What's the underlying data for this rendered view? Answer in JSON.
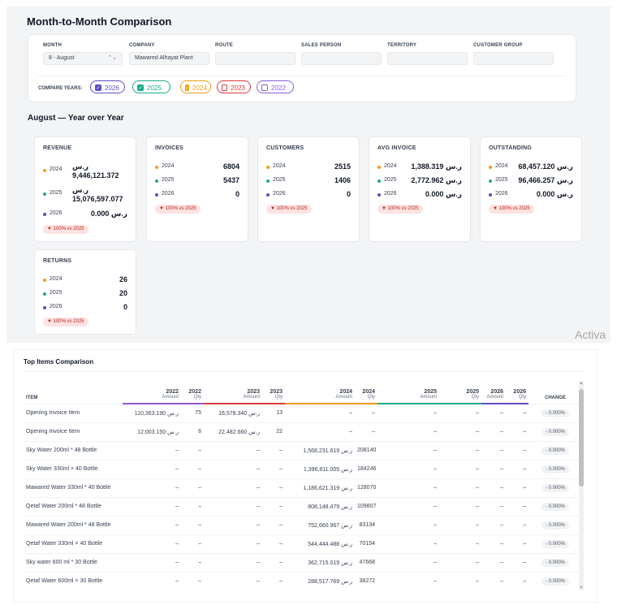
{
  "page": {
    "title": "Month-to-Month Comparison"
  },
  "filters": {
    "month": {
      "label": "MONTH",
      "value": "8 - August"
    },
    "company": {
      "label": "COMPANY",
      "value": "Mawared Alhayat Plant"
    },
    "route": {
      "label": "ROUTE",
      "value": ""
    },
    "sales_person": {
      "label": "SALES PERSON",
      "value": ""
    },
    "territory": {
      "label": "TERRITORY",
      "value": ""
    },
    "customer_group": {
      "label": "CUSTOMER GROUP",
      "value": ""
    }
  },
  "compare": {
    "label": "COMPARE YEARS:",
    "years": [
      {
        "label": "2026",
        "checked": true,
        "color": "#5b4fc7"
      },
      {
        "label": "2025",
        "checked": true,
        "color": "#1aab8a"
      },
      {
        "label": "2024",
        "checked": true,
        "color": "#f29c12"
      },
      {
        "label": "2023",
        "checked": false,
        "color": "#e0393e"
      },
      {
        "label": "2022",
        "checked": false,
        "color": "#8e5bd8"
      }
    ]
  },
  "section": {
    "title": "August — Year over Year"
  },
  "cards": {
    "revenue": {
      "title": "REVENUE",
      "rows": [
        {
          "year": "2024",
          "value": "ر.س 9,446,121.372"
        },
        {
          "year": "2025",
          "value": "ر.س 15,076,597.077"
        },
        {
          "year": "2026",
          "value": "ر.س 0.000"
        }
      ],
      "badge": "▼ 100% vs 2025"
    },
    "invoices": {
      "title": "INVOICES",
      "rows": [
        {
          "year": "2024",
          "value": "6804"
        },
        {
          "year": "2025",
          "value": "5437"
        },
        {
          "year": "2026",
          "value": "0"
        }
      ],
      "badge": "▼ 100% vs 2025"
    },
    "customers": {
      "title": "CUSTOMERS",
      "rows": [
        {
          "year": "2024",
          "value": "2515"
        },
        {
          "year": "2025",
          "value": "1406"
        },
        {
          "year": "2026",
          "value": "0"
        }
      ],
      "badge": "▼ 100% vs 2025"
    },
    "avg_invoice": {
      "title": "AVG INVOICE",
      "rows": [
        {
          "year": "2024",
          "value": "ر.س 1,388.319"
        },
        {
          "year": "2025",
          "value": "ر.س 2,772.962"
        },
        {
          "year": "2026",
          "value": "ر.س 0.000"
        }
      ],
      "badge": "▼ 100% vs 2025"
    },
    "outstanding": {
      "title": "OUTSTANDING",
      "rows": [
        {
          "year": "2024",
          "value": "ر.س 68,457.120"
        },
        {
          "year": "2025",
          "value": "ر.س 96,466.257"
        },
        {
          "year": "2026",
          "value": "ر.س 0.000"
        }
      ],
      "badge": "▼ 100% vs 2025"
    },
    "returns": {
      "title": "RETURNS",
      "rows": [
        {
          "year": "2024",
          "value": "26"
        },
        {
          "year": "2025",
          "value": "20"
        },
        {
          "year": "2026",
          "value": "0"
        }
      ],
      "badge": "▼ 100% vs 2025"
    }
  },
  "watermark": "Activa",
  "top_items": {
    "title": "Top Items Comparison",
    "columns": [
      {
        "year": "",
        "sub": "ITEM"
      },
      {
        "year": "2022",
        "sub": "Amount",
        "color": "#8e5bd8"
      },
      {
        "year": "2022",
        "sub": "Qty",
        "color": "#8e5bd8"
      },
      {
        "year": "2023",
        "sub": "Amount",
        "color": "#e0393e"
      },
      {
        "year": "2023",
        "sub": "Qty",
        "color": "#e0393e"
      },
      {
        "year": "2024",
        "sub": "Amount",
        "color": "#f29c12"
      },
      {
        "year": "2024",
        "sub": "Qty",
        "color": "#f29c12"
      },
      {
        "year": "2025",
        "sub": "Amount",
        "color": "#1aab8a"
      },
      {
        "year": "2025",
        "sub": "Qty",
        "color": "#1aab8a"
      },
      {
        "year": "2026",
        "sub": "Amount",
        "color": "#5b4fc7"
      },
      {
        "year": "2026",
        "sub": "Qty",
        "color": "#5b4fc7"
      },
      {
        "year": "",
        "sub": "CHANGE"
      }
    ],
    "rows": [
      [
        "Opening Invoice Item",
        "ر.س 110,363.190",
        "75",
        "ر.س 16,578.340",
        "13",
        "–",
        "–",
        "–",
        "–",
        "–",
        "–",
        "- 0.000%"
      ],
      [
        "Opening Invoice Item",
        "ر.س 12,003.150",
        "6",
        "ر.س 22,482.660",
        "22",
        "–",
        "–",
        "–",
        "–",
        "–",
        "–",
        "- 0.000%"
      ],
      [
        "Sky Water 200ml * 48 Bottle",
        "–",
        "–",
        "–",
        "–",
        "ر.س 1,568,231.619",
        "208140",
        "–",
        "–",
        "–",
        "–",
        "- 0.000%"
      ],
      [
        "Sky Water 330ml × 40 Bottle",
        "–",
        "–",
        "–",
        "–",
        "ر.س 1,396,811.005",
        "184246",
        "–",
        "–",
        "–",
        "–",
        "- 0.000%"
      ],
      [
        "Mawared Water 330ml * 40 Bottle",
        "–",
        "–",
        "–",
        "–",
        "ر.س 1,186,621.319",
        "128070",
        "–",
        "–",
        "–",
        "–",
        "- 0.000%"
      ],
      [
        "Qetaf Water 200ml * 48 Bottle",
        "–",
        "–",
        "–",
        "–",
        "ر.س 808,148.479",
        "109807",
        "–",
        "–",
        "–",
        "–",
        "- 0.000%"
      ],
      [
        "Mawared Water 200ml * 48 Bottle",
        "–",
        "–",
        "–",
        "–",
        "ر.س 752,660.967",
        "83134",
        "–",
        "–",
        "–",
        "–",
        "- 0.000%"
      ],
      [
        "Qetaf Water 330ml × 40 Bottle",
        "–",
        "–",
        "–",
        "–",
        "ر.س 544,444.488",
        "70154",
        "–",
        "–",
        "–",
        "–",
        "- 0.000%"
      ],
      [
        "Sky water 600 ml * 30 Bottle",
        "–",
        "–",
        "–",
        "–",
        "ر.س 362,715.019",
        "47668",
        "–",
        "–",
        "–",
        "–",
        "- 0.000%"
      ],
      [
        "Qetaf Water 600ml × 30 Bottle",
        "–",
        "–",
        "–",
        "–",
        "ر.س 288,517.769",
        "38272",
        "–",
        "–",
        "–",
        "–",
        "- 0.000%"
      ]
    ]
  },
  "colors": {
    "y2024": "#f29c12",
    "y2025": "#1aab8a",
    "y2026": "#5b4fc7",
    "badge_bg": "#fde2e2",
    "badge_text": "#b42318"
  },
  "icons": {
    "checkbox": "check-icon",
    "select": "chevron-updown-icon",
    "down": "triangle-down-icon"
  }
}
